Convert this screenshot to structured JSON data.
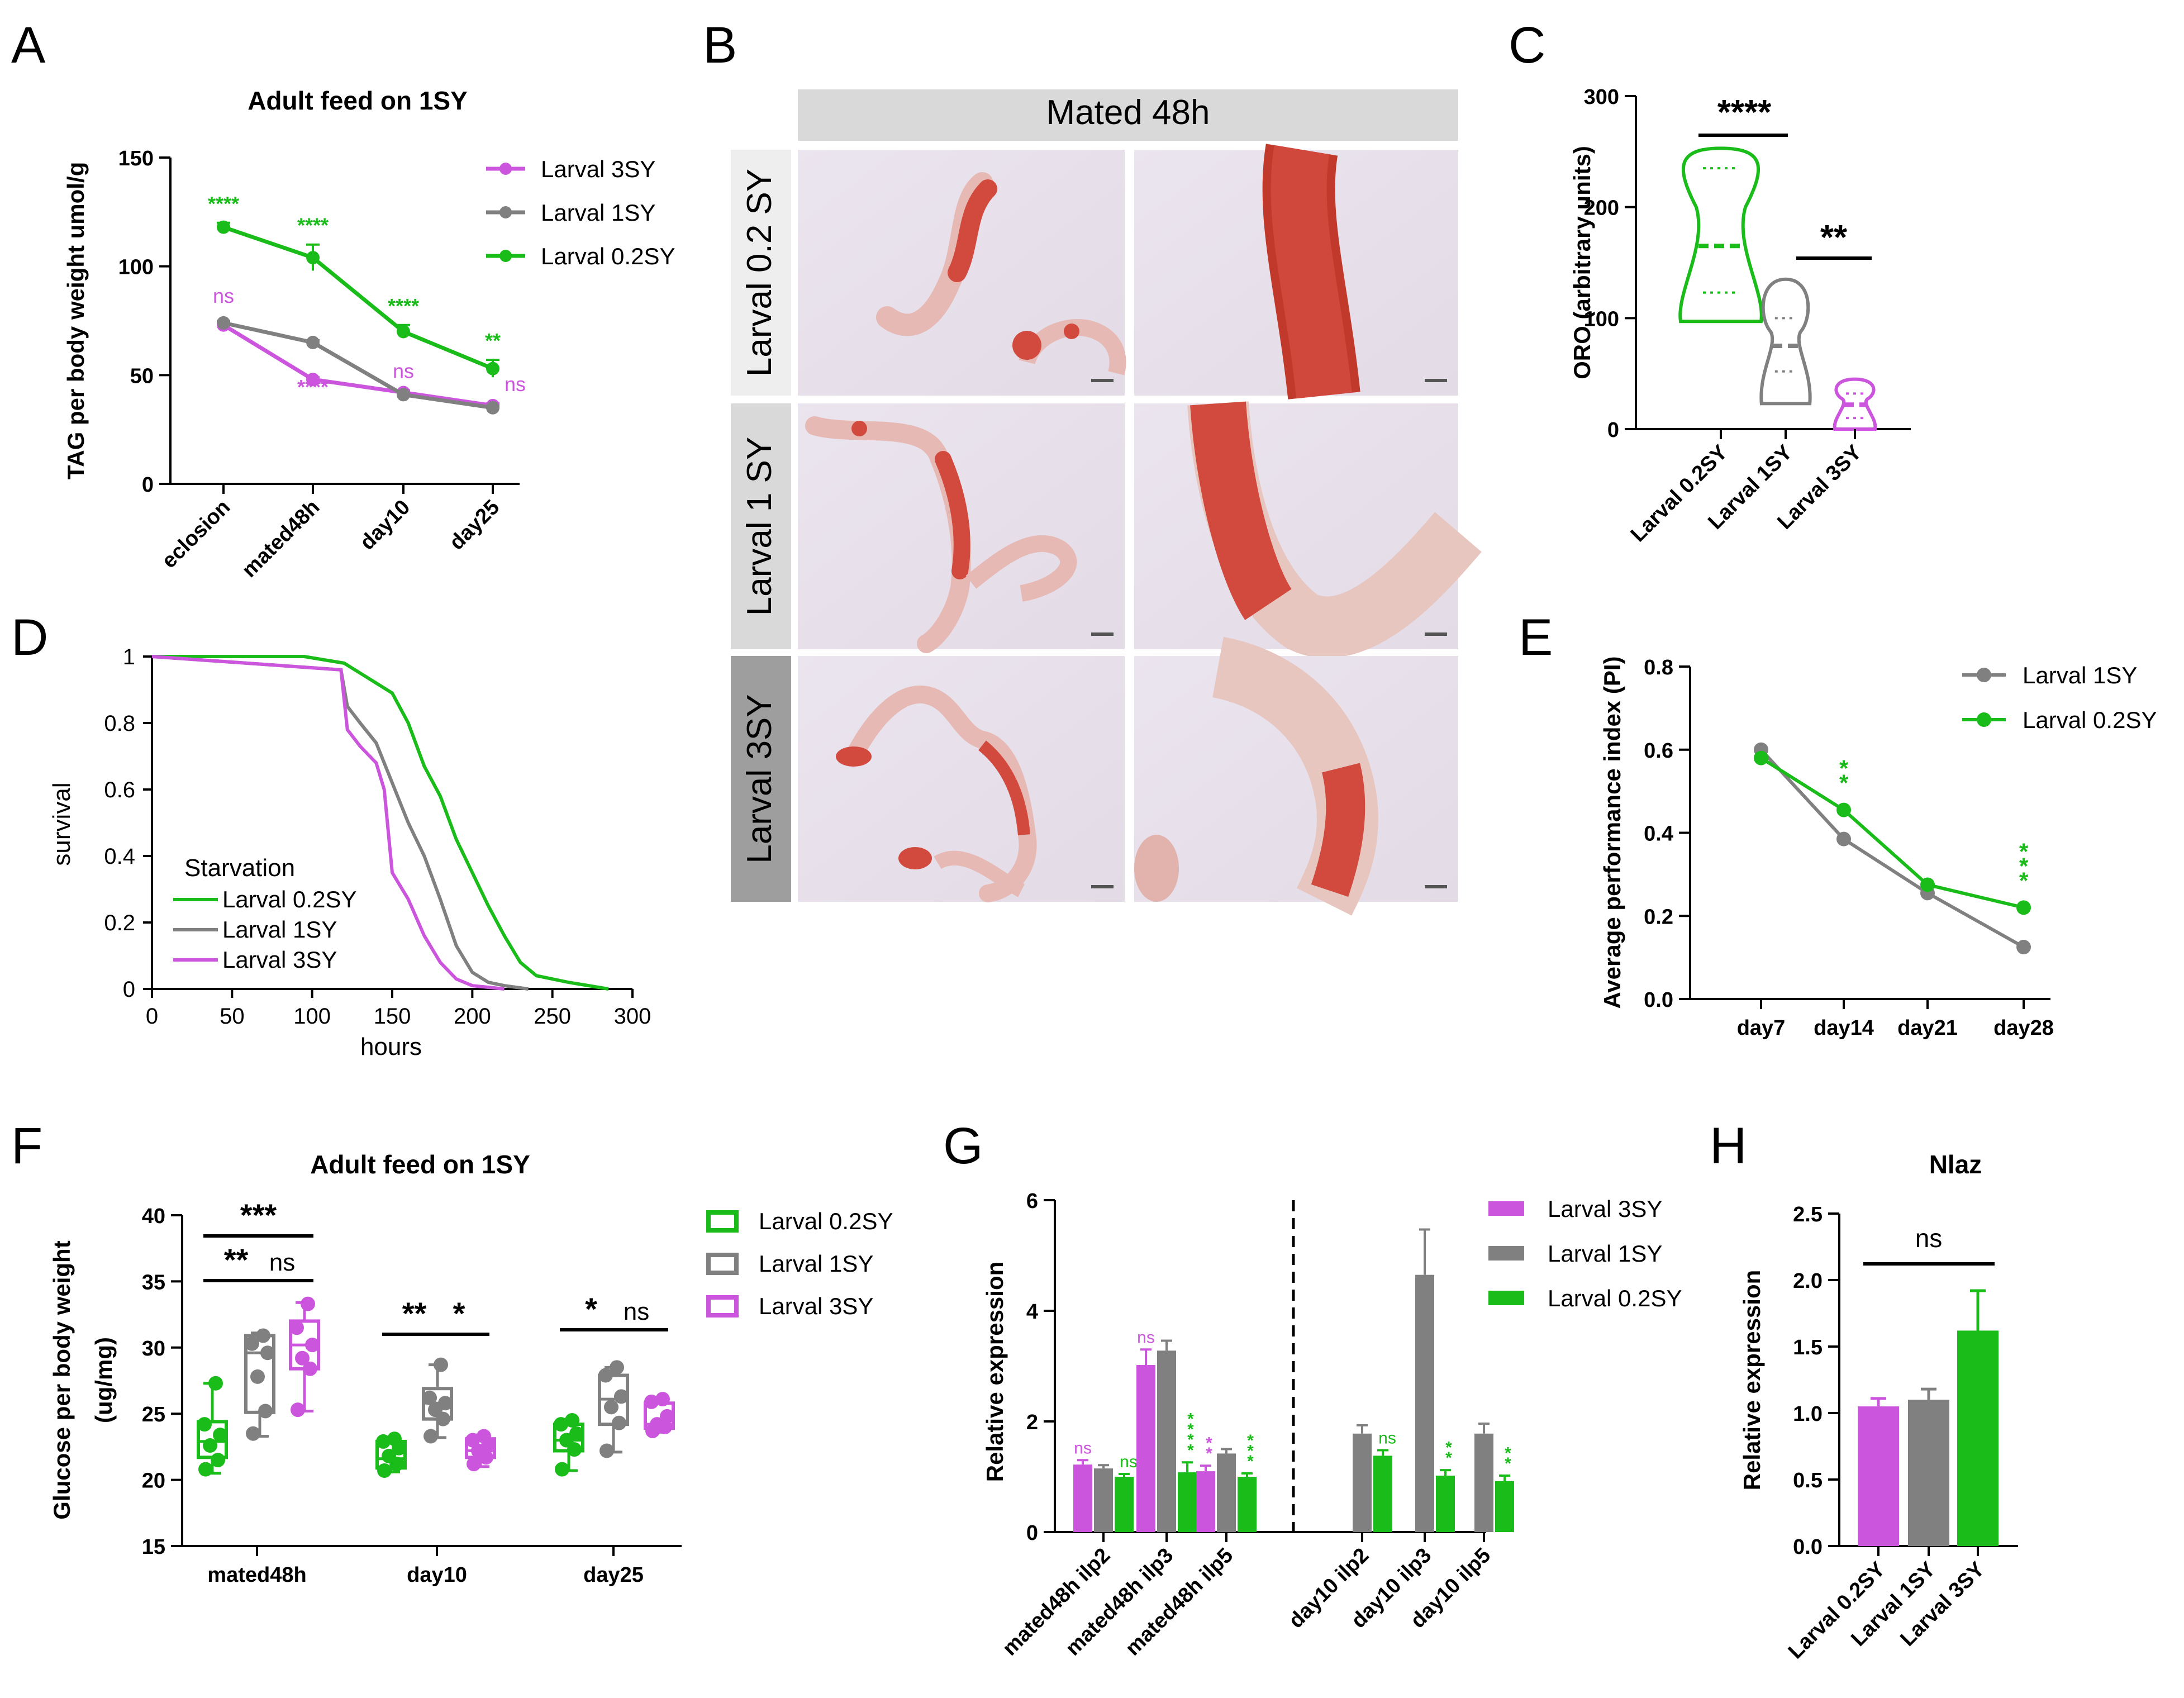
{
  "colors": {
    "magenta": "#cc55dd",
    "gray": "#808080",
    "green": "#1abc1a",
    "black": "#000000",
    "tissue": "#d24a3e"
  },
  "chart_data": [
    {
      "panel": "A",
      "type": "line",
      "title": "Adult feed on 1SY",
      "ylabel": "TAG per body weight umol/g",
      "xlabel": "",
      "categories": [
        "eclosion",
        "mated48h",
        "day10",
        "day25"
      ],
      "ylim": [
        0,
        150
      ],
      "yticks": [
        0,
        50,
        100,
        150
      ],
      "series": [
        {
          "name": "Larval 3SY",
          "color": "magenta",
          "values": [
            73,
            48,
            42,
            36
          ],
          "err": [
            1,
            1,
            1,
            1
          ],
          "stars": [
            "ns",
            "****",
            "ns",
            "ns"
          ]
        },
        {
          "name": "Larval 1SY",
          "color": "gray",
          "values": [
            74,
            65,
            41,
            35
          ],
          "err": [
            1,
            1,
            1,
            1
          ],
          "stars": [
            "",
            "",
            "",
            ""
          ]
        },
        {
          "name": "Larval 0.2SY",
          "color": "green",
          "values": [
            118,
            104,
            70,
            53
          ],
          "err": [
            2,
            6,
            3,
            4
          ],
          "stars": [
            "****",
            "****",
            "****",
            "**"
          ]
        }
      ]
    },
    {
      "panel": "C",
      "type": "violin",
      "ylabel": "ORO (arbitrary units)",
      "categories": [
        "Larval 0.2SY",
        "Larval 1SY",
        "Larval 3SY"
      ],
      "colors": [
        "green",
        "gray",
        "magenta"
      ],
      "ylim": [
        0,
        300
      ],
      "yticks": [
        0,
        100,
        200,
        300
      ],
      "min": [
        97,
        23,
        0
      ],
      "q1": [
        123,
        52,
        10
      ],
      "median": [
        165,
        75,
        22
      ],
      "q3": [
        235,
        100,
        32
      ],
      "max": [
        253,
        135,
        45
      ],
      "comparisons": [
        {
          "label": "****",
          "from": 0,
          "to": 1
        },
        {
          "label": "**",
          "from": 1,
          "to": 2
        }
      ]
    },
    {
      "panel": "D",
      "type": "line",
      "ylabel": "survival",
      "xlabel": "hours",
      "annotation": "Starvation",
      "xlim": [
        0,
        300
      ],
      "xticks": [
        0,
        50,
        100,
        150,
        200,
        250,
        300
      ],
      "ylim": [
        0,
        1
      ],
      "yticks": [
        "0",
        "0.2",
        "0.4",
        "0.6",
        "0.8",
        "1"
      ],
      "series": [
        {
          "name": "Larval 0.2SY",
          "color": "green",
          "x": [
            0,
            95,
            120,
            130,
            140,
            150,
            160,
            170,
            180,
            190,
            200,
            210,
            220,
            230,
            240,
            260,
            285
          ],
          "y": [
            1,
            1,
            0.98,
            0.95,
            0.92,
            0.89,
            0.8,
            0.67,
            0.58,
            0.45,
            0.35,
            0.25,
            0.16,
            0.08,
            0.04,
            0.02,
            0
          ]
        },
        {
          "name": "Larval 1SY",
          "color": "gray",
          "x": [
            0,
            118,
            122,
            130,
            140,
            150,
            160,
            170,
            180,
            190,
            200,
            210,
            220,
            235
          ],
          "y": [
            1,
            0.96,
            0.85,
            0.8,
            0.74,
            0.62,
            0.5,
            0.4,
            0.27,
            0.13,
            0.05,
            0.02,
            0.01,
            0
          ]
        },
        {
          "name": "Larval 3SY",
          "color": "magenta",
          "x": [
            0,
            118,
            122,
            130,
            140,
            145,
            150,
            160,
            170,
            180,
            190,
            200,
            210,
            220
          ],
          "y": [
            1,
            0.96,
            0.78,
            0.73,
            0.68,
            0.6,
            0.35,
            0.27,
            0.16,
            0.08,
            0.03,
            0.01,
            0.005,
            0
          ]
        }
      ]
    },
    {
      "panel": "E",
      "type": "line",
      "ylabel": "Average performance index (PI)",
      "categories": [
        "day7",
        "day14",
        "day21",
        "day28"
      ],
      "ylim": [
        0,
        0.8
      ],
      "yticks": [
        "0.0",
        "0.2",
        "0.4",
        "0.6",
        "0.8"
      ],
      "series": [
        {
          "name": "Larval 1SY",
          "color": "gray",
          "values": [
            0.6,
            0.385,
            0.255,
            0.125
          ]
        },
        {
          "name": "Larval 0.2SY",
          "color": "green",
          "values": [
            0.58,
            0.455,
            0.275,
            0.22
          ]
        }
      ],
      "stars": [
        {
          "index": 1,
          "label": "**"
        },
        {
          "index": 3,
          "label": "***"
        }
      ]
    },
    {
      "panel": "F",
      "type": "box",
      "title": "Adult feed on 1SY",
      "ylabel": "Glucose per body weight",
      "ylabel2": "(ug/mg)",
      "categories": [
        "mated48h",
        "day10",
        "day25"
      ],
      "series_names": [
        "Larval 0.2SY",
        "Larval 1SY",
        "Larval 3SY"
      ],
      "series_colors": [
        "green",
        "gray",
        "magenta"
      ],
      "ylim": [
        15,
        40
      ],
      "yticks": [
        15,
        20,
        25,
        30,
        35,
        40
      ],
      "boxes": [
        [
          [
            20.5,
            21.7,
            22.9,
            24.4,
            27.3
          ],
          [
            23.3,
            25.1,
            29.6,
            30.9,
            31.1
          ],
          [
            25.2,
            28.4,
            30.2,
            32.0,
            33.4
          ]
        ],
        [
          [
            20.6,
            20.9,
            21.6,
            22.9,
            23.1
          ],
          [
            23.2,
            24.6,
            25.8,
            26.9,
            28.7
          ],
          [
            21.0,
            21.7,
            22.2,
            23.1,
            23.4
          ]
        ],
        [
          [
            20.7,
            22.2,
            23.0,
            24.2,
            24.5
          ],
          [
            22.1,
            24.2,
            26.1,
            27.9,
            28.5
          ],
          [
            23.6,
            23.9,
            24.2,
            25.8,
            26.1
          ]
        ]
      ],
      "points": [
        [
          [
            20.8,
            21.5,
            22.6,
            23.4,
            24.2,
            27.3
          ],
          [
            23.5,
            25.2,
            27.8,
            29.6,
            30.3,
            30.9
          ],
          [
            25.3,
            28.4,
            29.2,
            30.2,
            31.5,
            33.3
          ]
        ],
        [
          [
            20.7,
            21.2,
            21.8,
            22.4,
            22.9,
            23.1
          ],
          [
            23.3,
            24.6,
            25.3,
            25.8,
            26.2,
            28.7
          ],
          [
            21.2,
            21.7,
            22.2,
            22.6,
            23.0,
            23.3
          ]
        ],
        [
          [
            20.8,
            22.3,
            23.0,
            23.5,
            24.2,
            24.5
          ],
          [
            22.2,
            24.3,
            25.5,
            26.3,
            27.9,
            28.5
          ],
          [
            23.7,
            24.0,
            24.2,
            24.8,
            25.9,
            26.1
          ]
        ]
      ],
      "comparisons": [
        {
          "group": 0,
          "from": 0,
          "to": 1,
          "label": "**",
          "level": 0
        },
        {
          "group": 0,
          "from": 1,
          "to": 2,
          "label": "ns",
          "level": 0
        },
        {
          "group": 0,
          "from": 0,
          "to": 2,
          "label": "***",
          "level": 1
        },
        {
          "group": 1,
          "from": 0,
          "to": 1,
          "label": "**",
          "level": 0
        },
        {
          "group": 1,
          "from": 1,
          "to": 2,
          "label": "*",
          "level": 0
        },
        {
          "group": 2,
          "from": 0,
          "to": 1,
          "label": "*",
          "level": 0
        },
        {
          "group": 2,
          "from": 1,
          "to": 2,
          "label": "ns",
          "level": 0
        }
      ]
    },
    {
      "panel": "G",
      "type": "bar",
      "ylabel": "Relative expression",
      "categories": [
        "mated48h ilp2",
        "mated48h ilp3",
        "mated48h ilp5",
        "day10 ilp2",
        "day10 ilp3",
        "day10 ilp5"
      ],
      "ylim": [
        0,
        6
      ],
      "yticks": [
        0,
        2,
        4,
        6
      ],
      "series": [
        {
          "name": "Larval 3SY",
          "color": "magenta",
          "values": [
            1.22,
            3.02,
            1.1,
            null,
            null,
            null
          ],
          "err": [
            0.08,
            0.28,
            0.1,
            null,
            null,
            null
          ],
          "stars": [
            "ns",
            "ns",
            "**",
            "",
            "",
            ""
          ]
        },
        {
          "name": "Larval 1SY",
          "color": "gray",
          "values": [
            1.15,
            3.28,
            1.42,
            1.78,
            4.65,
            1.78
          ],
          "err": [
            0.06,
            0.18,
            0.08,
            0.15,
            0.82,
            0.18
          ],
          "stars": [
            "",
            "",
            "",
            "",
            "",
            ""
          ]
        },
        {
          "name": "Larval 0.2SY",
          "color": "green",
          "values": [
            1.0,
            1.08,
            1.0,
            1.38,
            1.02,
            0.92
          ],
          "err": [
            0.05,
            0.18,
            0.06,
            0.1,
            0.1,
            0.1
          ],
          "stars": [
            "ns",
            "****",
            "***",
            "ns",
            "**",
            "**"
          ]
        }
      ]
    },
    {
      "panel": "H",
      "type": "bar",
      "title": "Nlaz",
      "ylabel": "Relative expression",
      "categories": [
        "Larval 0.2SY",
        "Larval 1SY",
        "Larval 3SY"
      ],
      "colors": [
        "magenta",
        "gray",
        "green"
      ],
      "values": [
        1.05,
        1.1,
        1.62
      ],
      "err": [
        0.06,
        0.08,
        0.3
      ],
      "ylim": [
        0,
        2.5
      ],
      "yticks": [
        "0.0",
        "0.5",
        "1.0",
        "1.5",
        "2.0",
        "2.5"
      ],
      "comparison": "ns"
    }
  ],
  "panel_b": {
    "header": "Mated 48h",
    "rows": [
      "Larval 0.2 SY",
      "Larval 1 SY",
      "Larval 3SY"
    ],
    "image_description": "Oil Red O stained gut tissue micrographs"
  },
  "panel_labels": [
    "A",
    "B",
    "C",
    "D",
    "E",
    "F",
    "G",
    "H"
  ]
}
